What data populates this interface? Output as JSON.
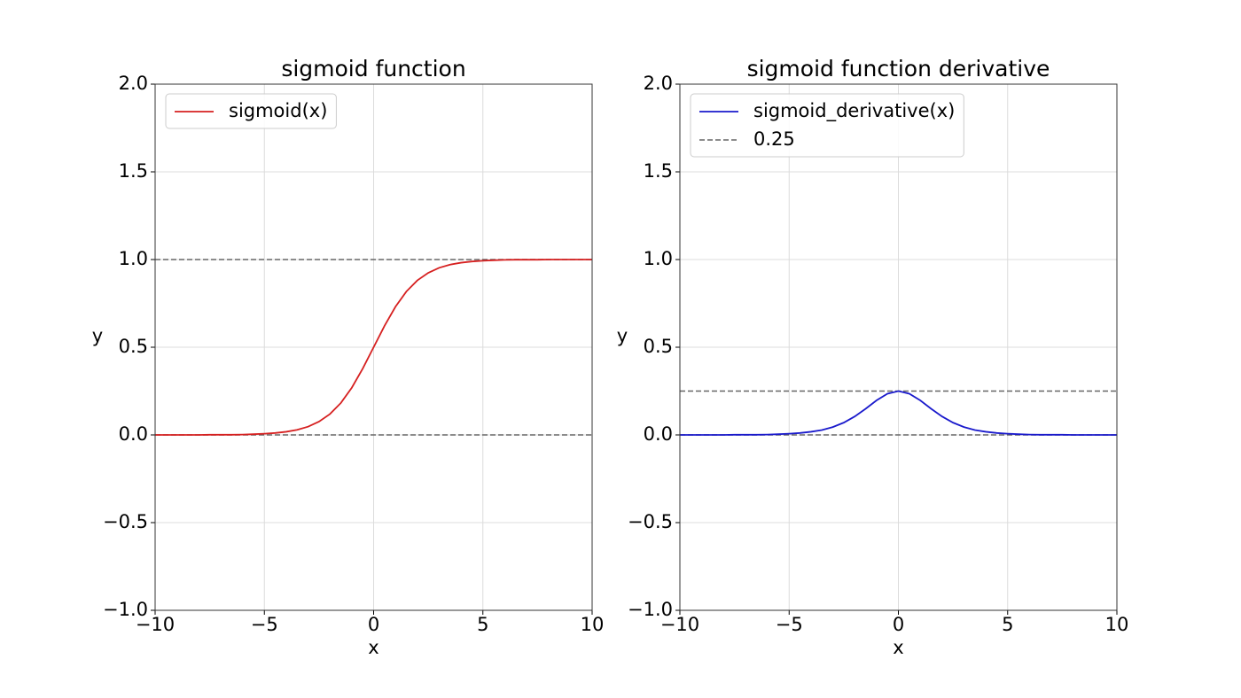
{
  "chart_data": [
    {
      "type": "line",
      "title": "sigmoid function",
      "x_label": "x",
      "y_label": "y",
      "x": [
        -10,
        -9.5,
        -9,
        -8.5,
        -8,
        -7.5,
        -7,
        -6.5,
        -6,
        -5.5,
        -5,
        -4.5,
        -4,
        -3.5,
        -3,
        -2.5,
        -2,
        -1.5,
        -1,
        -0.5,
        0,
        0.5,
        1,
        1.5,
        2,
        2.5,
        3,
        3.5,
        4,
        4.5,
        5,
        5.5,
        6,
        6.5,
        7,
        7.5,
        8,
        8.5,
        9,
        9.5,
        10
      ],
      "series": [
        {
          "name": "sigmoid(x)",
          "color": "#d62020",
          "values": [
            0,
            0,
            0,
            0,
            0,
            0.001,
            0.001,
            0.001,
            0.002,
            0.004,
            0.007,
            0.011,
            0.018,
            0.029,
            0.047,
            0.076,
            0.119,
            0.182,
            0.269,
            0.378,
            0.5,
            0.622,
            0.731,
            0.818,
            0.881,
            0.924,
            0.953,
            0.971,
            0.982,
            0.989,
            0.993,
            0.996,
            0.998,
            0.999,
            0.999,
            0.999,
            1,
            1,
            1,
            1,
            1
          ]
        }
      ],
      "hlines": [
        {
          "value": 0,
          "color": "#666666"
        },
        {
          "value": 1,
          "color": "#666666"
        }
      ],
      "xlim": [
        -10,
        10
      ],
      "ylim": [
        -1,
        2
      ],
      "xticks": [
        {
          "value": -10,
          "label": "−10"
        },
        {
          "value": -5,
          "label": "−5"
        },
        0,
        5,
        10
      ],
      "yticks": [
        {
          "value": -1,
          "label": "−1.0"
        },
        {
          "value": -0.5,
          "label": "−0.5"
        },
        {
          "value": 0,
          "label": "0.0"
        },
        0.5,
        {
          "value": 1,
          "label": "1.0"
        },
        1.5,
        {
          "value": 2,
          "label": "2.0"
        }
      ],
      "grid": true,
      "legend": "upper left"
    },
    {
      "type": "line",
      "title": "sigmoid function derivative",
      "x_label": "x",
      "y_label": "y",
      "x": [
        -10,
        -9.5,
        -9,
        -8.5,
        -8,
        -7.5,
        -7,
        -6.5,
        -6,
        -5.5,
        -5,
        -4.5,
        -4,
        -3.5,
        -3,
        -2.5,
        -2,
        -1.5,
        -1,
        -0.5,
        0,
        0.5,
        1,
        1.5,
        2,
        2.5,
        3,
        3.5,
        4,
        4.5,
        5,
        5.5,
        6,
        6.5,
        7,
        7.5,
        8,
        8.5,
        9,
        9.5,
        10
      ],
      "series": [
        {
          "name": "sigmoid_derivative(x)",
          "color": "#1a1acc",
          "values": [
            0,
            0,
            0,
            0,
            0,
            0.001,
            0.001,
            0.001,
            0.002,
            0.004,
            0.007,
            0.011,
            0.018,
            0.028,
            0.045,
            0.07,
            0.105,
            0.149,
            0.197,
            0.235,
            0.25,
            0.235,
            0.197,
            0.149,
            0.105,
            0.07,
            0.045,
            0.028,
            0.018,
            0.011,
            0.007,
            0.004,
            0.002,
            0.001,
            0.001,
            0.001,
            0,
            0,
            0,
            0,
            0
          ]
        }
      ],
      "hlines": [
        {
          "name": "0.25",
          "value": 0.25,
          "color": "#666666"
        },
        {
          "value": 0,
          "color": "#666666"
        }
      ],
      "xlim": [
        -10,
        10
      ],
      "ylim": [
        -1,
        2
      ],
      "xticks": [
        {
          "value": -10,
          "label": "−10"
        },
        {
          "value": -5,
          "label": "−5"
        },
        0,
        5,
        10
      ],
      "yticks": [
        {
          "value": -1,
          "label": "−1.0"
        },
        {
          "value": -0.5,
          "label": "−0.5"
        },
        {
          "value": 0,
          "label": "0.0"
        },
        0.5,
        {
          "value": 1,
          "label": "1.0"
        },
        1.5,
        {
          "value": 2,
          "label": "2.0"
        }
      ],
      "grid": true,
      "legend": "upper left"
    }
  ]
}
